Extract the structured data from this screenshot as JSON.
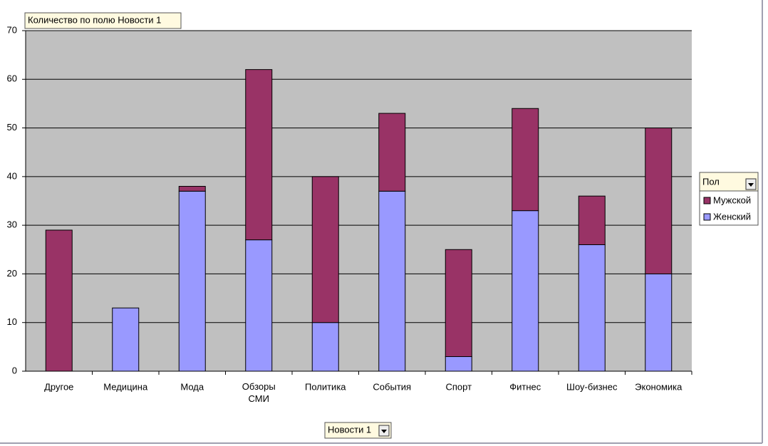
{
  "chart_data": {
    "type": "stacked-bar",
    "title": "Количество по полю Новости 1",
    "x_field": "Новости 1",
    "legend_title": "Пол",
    "categories": [
      "Другое",
      "Медицина",
      "Мода",
      "Обзоры СМИ",
      "Политика",
      "События",
      "Спорт",
      "Фитнес",
      "Шоу-бизнес",
      "Экономика"
    ],
    "series": [
      {
        "name": "Женский",
        "color": "#9999ff",
        "values": [
          0,
          13,
          37,
          27,
          10,
          37,
          3,
          33,
          26,
          20
        ]
      },
      {
        "name": "Мужской",
        "color": "#993366",
        "values": [
          29,
          null,
          1,
          35,
          30,
          16,
          22,
          21,
          10,
          30
        ]
      }
    ],
    "ylim": [
      0,
      70
    ],
    "yticks": [
      0,
      10,
      20,
      30,
      40,
      50,
      60,
      70
    ],
    "grid": true,
    "legend": "right"
  }
}
